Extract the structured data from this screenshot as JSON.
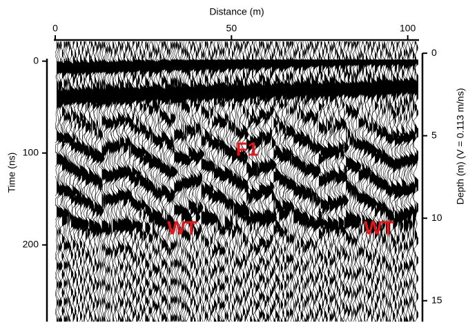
{
  "chart_data": {
    "type": "radargram",
    "x_label": "Distance (m)",
    "y_label": "Time (ns)",
    "y2_label": "Depth (m) (V = 0.113 m/ns)",
    "xlim": [
      0,
      103
    ],
    "xticks": [
      0,
      50,
      100
    ],
    "ylim": [
      -23,
      285
    ],
    "yticks": [
      0,
      100,
      200
    ],
    "y2lim": [
      -0.8,
      16.35
    ],
    "y2ticks": [
      0,
      5,
      10,
      15
    ],
    "annotations": [
      "F1",
      "WT",
      "WT"
    ]
  }
}
